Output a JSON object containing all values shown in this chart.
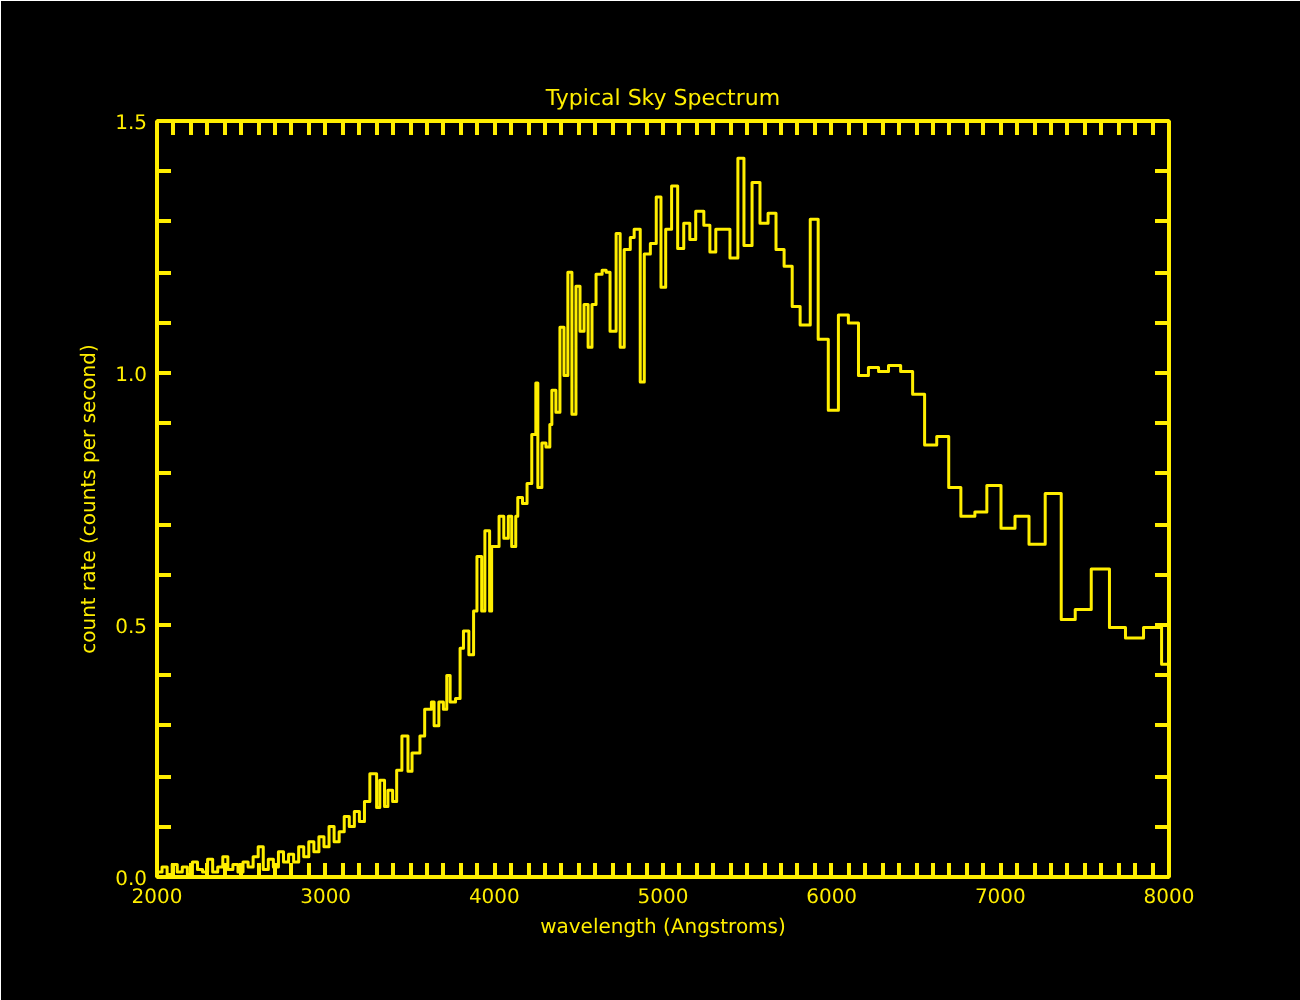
{
  "chart_data": {
    "type": "step",
    "title": "Typical Sky Spectrum",
    "xlabel": "wavelength (Angstroms)",
    "ylabel": "count rate (counts per second)",
    "x": [
      2000,
      2030,
      2060,
      2090,
      2120,
      2150,
      2180,
      2210,
      2240,
      2270,
      2300,
      2330,
      2360,
      2390,
      2420,
      2450,
      2480,
      2510,
      2540,
      2570,
      2600,
      2630,
      2660,
      2690,
      2720,
      2750,
      2780,
      2810,
      2840,
      2870,
      2900,
      2930,
      2960,
      2990,
      3020,
      3050,
      3080,
      3110,
      3140,
      3170,
      3200,
      3230,
      3262,
      3302,
      3321,
      3349,
      3369,
      3397,
      3421,
      3452,
      3488,
      3512,
      3559,
      3587,
      3627,
      3643,
      3671,
      3698,
      3718,
      3738,
      3770,
      3797,
      3817,
      3849,
      3877,
      3897,
      3925,
      3944,
      3972,
      3984,
      4028,
      4056,
      4083,
      4103,
      4127,
      4139,
      4167,
      4194,
      4222,
      4246,
      4258,
      4282,
      4306,
      4329,
      4341,
      4365,
      4389,
      4413,
      4436,
      4460,
      4484,
      4508,
      4532,
      4556,
      4579,
      4603,
      4639,
      4663,
      4686,
      4722,
      4746,
      4770,
      4806,
      4829,
      4865,
      4889,
      4925,
      4960,
      4988,
      5016,
      5051,
      5087,
      5123,
      5159,
      5194,
      5242,
      5278,
      5313,
      5397,
      5444,
      5480,
      5528,
      5575,
      5623,
      5670,
      5718,
      5766,
      5813,
      5873,
      5920,
      5980,
      6040,
      6099,
      6159,
      6218,
      6278,
      6337,
      6409,
      6480,
      6551,
      6623,
      6694,
      6766,
      6849,
      6920,
      7004,
      7087,
      7170,
      7266,
      7361,
      7444,
      7539,
      7647,
      7742,
      7849,
      7956,
      8000
    ],
    "series": [
      {
        "color": "#ffee00",
        "values": [
          0.01,
          0.02,
          0.005,
          0.025,
          0.01,
          0.02,
          0.005,
          0.03,
          0.015,
          0.01,
          0.035,
          0.01,
          0.02,
          0.04,
          0.015,
          0.025,
          0.01,
          0.03,
          0.02,
          0.04,
          0.06,
          0.015,
          0.035,
          0.02,
          0.05,
          0.03,
          0.045,
          0.03,
          0.06,
          0.04,
          0.07,
          0.05,
          0.08,
          0.06,
          0.1,
          0.07,
          0.09,
          0.12,
          0.1,
          0.13,
          0.11,
          0.15,
          0.205,
          0.138,
          0.192,
          0.14,
          0.172,
          0.15,
          0.212,
          0.28,
          0.21,
          0.246,
          0.28,
          0.333,
          0.347,
          0.3,
          0.347,
          0.333,
          0.4,
          0.347,
          0.354,
          0.454,
          0.488,
          0.441,
          0.528,
          0.636,
          0.528,
          0.687,
          0.528,
          0.656,
          0.716,
          0.672,
          0.716,
          0.656,
          0.716,
          0.753,
          0.741,
          0.781,
          0.878,
          0.98,
          0.773,
          0.861,
          0.853,
          0.898,
          0.966,
          0.922,
          1.091,
          0.995,
          1.2,
          0.918,
          1.172,
          1.083,
          1.136,
          1.051,
          1.136,
          1.196,
          1.204,
          1.2,
          1.083,
          1.277,
          1.051,
          1.245,
          1.269,
          1.285,
          0.982,
          1.236,
          1.257,
          1.349,
          1.17,
          1.285,
          1.371,
          1.247,
          1.297,
          1.265,
          1.321,
          1.293,
          1.24,
          1.285,
          1.228,
          1.426,
          1.253,
          1.378,
          1.297,
          1.317,
          1.245,
          1.212,
          1.132,
          1.095,
          1.305,
          1.067,
          0.926,
          1.115,
          1.099,
          0.995,
          1.011,
          1.003,
          1.015,
          1.003,
          0.958,
          0.857,
          0.874,
          0.773,
          0.716,
          0.724,
          0.777,
          0.692,
          0.716,
          0.66,
          0.761,
          0.511,
          0.531,
          0.611,
          0.495,
          0.474,
          0.495,
          0.422,
          0.422
        ]
      }
    ],
    "xlim": [
      2000,
      8000
    ],
    "xticks": [
      2000,
      {
        "value": 2100,
        "label": null
      },
      {
        "value": 2200,
        "label": null
      },
      {
        "value": 2300,
        "label": null
      },
      {
        "value": 2400,
        "label": null
      },
      {
        "value": 2500,
        "label": null
      },
      {
        "value": 2600,
        "label": null
      },
      {
        "value": 2700,
        "label": null
      },
      {
        "value": 2800,
        "label": null
      },
      {
        "value": 2900,
        "label": null
      },
      3000,
      {
        "value": 3100,
        "label": null
      },
      {
        "value": 3200,
        "label": null
      },
      {
        "value": 3300,
        "label": null
      },
      {
        "value": 3400,
        "label": null
      },
      {
        "value": 3500,
        "label": null
      },
      {
        "value": 3600,
        "label": null
      },
      {
        "value": 3700,
        "label": null
      },
      {
        "value": 3800,
        "label": null
      },
      {
        "value": 3900,
        "label": null
      },
      4000,
      {
        "value": 4100,
        "label": null
      },
      {
        "value": 4200,
        "label": null
      },
      {
        "value": 4300,
        "label": null
      },
      {
        "value": 4400,
        "label": null
      },
      {
        "value": 4500,
        "label": null
      },
      {
        "value": 4600,
        "label": null
      },
      {
        "value": 4700,
        "label": null
      },
      {
        "value": 4800,
        "label": null
      },
      {
        "value": 4900,
        "label": null
      },
      5000,
      {
        "value": 5100,
        "label": null
      },
      {
        "value": 5200,
        "label": null
      },
      {
        "value": 5300,
        "label": null
      },
      {
        "value": 5400,
        "label": null
      },
      {
        "value": 5500,
        "label": null
      },
      {
        "value": 5600,
        "label": null
      },
      {
        "value": 5700,
        "label": null
      },
      {
        "value": 5800,
        "label": null
      },
      {
        "value": 5900,
        "label": null
      },
      6000,
      {
        "value": 6100,
        "label": null
      },
      {
        "value": 6200,
        "label": null
      },
      {
        "value": 6300,
        "label": null
      },
      {
        "value": 6400,
        "label": null
      },
      {
        "value": 6500,
        "label": null
      },
      {
        "value": 6600,
        "label": null
      },
      {
        "value": 6700,
        "label": null
      },
      {
        "value": 6800,
        "label": null
      },
      {
        "value": 6900,
        "label": null
      },
      7000,
      {
        "value": 7100,
        "label": null
      },
      {
        "value": 7200,
        "label": null
      },
      {
        "value": 7300,
        "label": null
      },
      {
        "value": 7400,
        "label": null
      },
      {
        "value": 7500,
        "label": null
      },
      {
        "value": 7600,
        "label": null
      },
      {
        "value": 7700,
        "label": null
      },
      {
        "value": 7800,
        "label": null
      },
      {
        "value": 7900,
        "label": null
      },
      8000
    ],
    "ylim": [
      0,
      1.5
    ],
    "yticks": [
      {
        "value": 0,
        "label": "0.0"
      },
      {
        "value": 0.1,
        "label": null
      },
      {
        "value": 0.2,
        "label": null
      },
      {
        "value": 0.3,
        "label": null
      },
      {
        "value": 0.4,
        "label": null
      },
      {
        "value": 0.5,
        "label": "0.5"
      },
      {
        "value": 0.6,
        "label": null
      },
      {
        "value": 0.7,
        "label": null
      },
      {
        "value": 0.8,
        "label": null
      },
      {
        "value": 0.9,
        "label": null
      },
      {
        "value": 1.0,
        "label": "1.0"
      },
      {
        "value": 1.1,
        "label": null
      },
      {
        "value": 1.2,
        "label": null
      },
      {
        "value": 1.3,
        "label": null
      },
      {
        "value": 1.4,
        "label": null
      },
      {
        "value": 1.5,
        "label": "1.5"
      }
    ],
    "grid": false
  }
}
